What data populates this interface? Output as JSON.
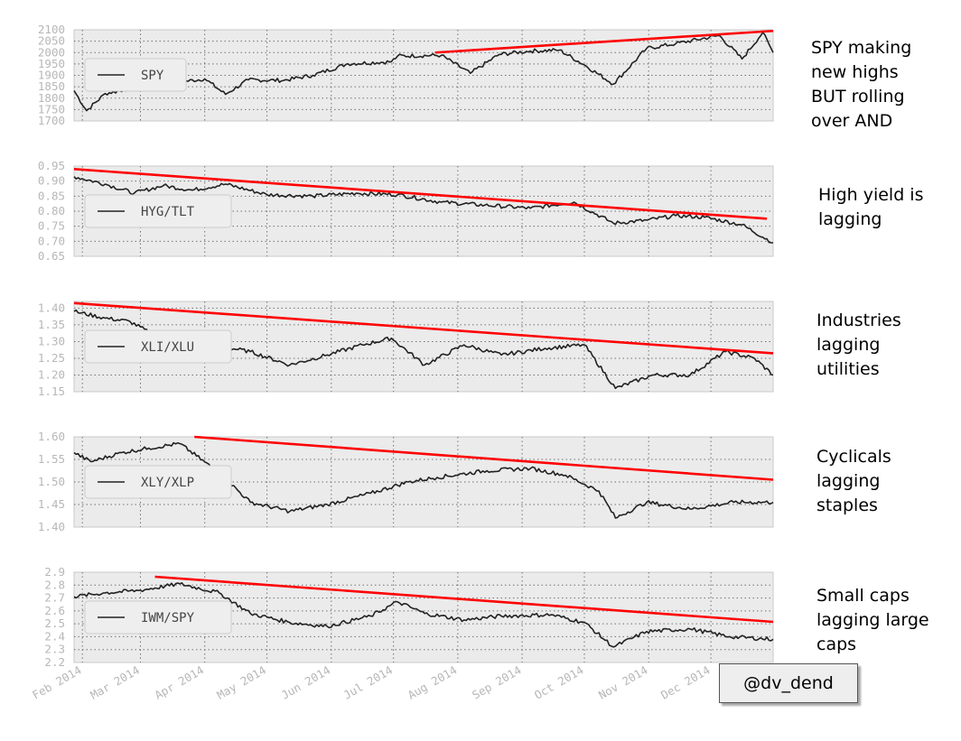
{
  "chart_data": [
    {
      "type": "line",
      "legend": "SPY",
      "yticks": [
        "1700",
        "1750",
        "1800",
        "1850",
        "1900",
        "1950",
        "2000",
        "2050",
        "2100"
      ],
      "ylim": [
        1700,
        2100
      ],
      "x_range": [
        "2014-01-28",
        "2014-12-31"
      ],
      "series": [
        {
          "name": "SPY",
          "points": [
            [
              "2014-01-28",
              1833
            ],
            [
              "2014-02-03",
              1745
            ],
            [
              "2014-02-12",
              1820
            ],
            [
              "2014-02-21",
              1836
            ],
            [
              "2014-03-07",
              1878
            ],
            [
              "2014-03-21",
              1872
            ],
            [
              "2014-04-01",
              1885
            ],
            [
              "2014-04-11",
              1817
            ],
            [
              "2014-04-22",
              1880
            ],
            [
              "2014-05-09",
              1878
            ],
            [
              "2014-05-23",
              1900
            ],
            [
              "2014-06-09",
              1951
            ],
            [
              "2014-06-30",
              1960
            ],
            [
              "2014-07-03",
              1985
            ],
            [
              "2014-07-24",
              1988
            ],
            [
              "2014-08-07",
              1909
            ],
            [
              "2014-08-21",
              1992
            ],
            [
              "2014-09-05",
              2007
            ],
            [
              "2014-09-19",
              2011
            ],
            [
              "2014-10-01",
              1946
            ],
            [
              "2014-10-15",
              1862
            ],
            [
              "2014-10-31",
              2018
            ],
            [
              "2014-11-14",
              2039
            ],
            [
              "2014-12-05",
              2075
            ],
            [
              "2014-12-16",
              1972
            ],
            [
              "2014-12-26",
              2088
            ],
            [
              "2014-12-31",
              2000
            ]
          ]
        }
      ],
      "trendline": {
        "from": [
          "2014-07-21",
          2000
        ],
        "to": [
          "2014-12-31",
          2095
        ]
      }
    },
    {
      "type": "line",
      "legend": "HYG/TLT",
      "yticks": [
        "0.65",
        "0.70",
        "0.75",
        "0.80",
        "0.85",
        "0.90",
        "0.95"
      ],
      "ylim": [
        0.65,
        0.95
      ],
      "x_range": [
        "2014-01-28",
        "2014-12-31"
      ],
      "series": [
        {
          "name": "HYG/TLT",
          "points": [
            [
              "2014-01-28",
              0.915
            ],
            [
              "2014-02-12",
              0.89
            ],
            [
              "2014-02-26",
              0.86
            ],
            [
              "2014-03-12",
              0.885
            ],
            [
              "2014-03-26",
              0.87
            ],
            [
              "2014-04-11",
              0.89
            ],
            [
              "2014-05-01",
              0.855
            ],
            [
              "2014-05-23",
              0.85
            ],
            [
              "2014-06-13",
              0.86
            ],
            [
              "2014-07-03",
              0.855
            ],
            [
              "2014-07-24",
              0.83
            ],
            [
              "2014-08-14",
              0.82
            ],
            [
              "2014-09-05",
              0.81
            ],
            [
              "2014-09-26",
              0.83
            ],
            [
              "2014-10-15",
              0.76
            ],
            [
              "2014-10-31",
              0.77
            ],
            [
              "2014-11-14",
              0.785
            ],
            [
              "2014-11-28",
              0.78
            ],
            [
              "2014-12-16",
              0.755
            ],
            [
              "2014-12-31",
              0.695
            ]
          ]
        }
      ],
      "trendline": {
        "from": [
          "2014-01-28",
          0.94
        ],
        "to": [
          "2014-12-28",
          0.775
        ]
      }
    },
    {
      "type": "line",
      "legend": "XLI/XLU",
      "yticks": [
        "1.15",
        "1.20",
        "1.25",
        "1.30",
        "1.35",
        "1.40"
      ],
      "ylim": [
        1.15,
        1.42
      ],
      "x_range": [
        "2014-01-28",
        "2014-12-31"
      ],
      "series": [
        {
          "name": "XLI/XLU",
          "points": [
            [
              "2014-01-28",
              1.39
            ],
            [
              "2014-02-12",
              1.37
            ],
            [
              "2014-02-24",
              1.36
            ],
            [
              "2014-03-10",
              1.31
            ],
            [
              "2014-03-24",
              1.33
            ],
            [
              "2014-04-04",
              1.29
            ],
            [
              "2014-04-23",
              1.27
            ],
            [
              "2014-05-12",
              1.23
            ],
            [
              "2014-05-30",
              1.26
            ],
            [
              "2014-06-16",
              1.29
            ],
            [
              "2014-06-30",
              1.31
            ],
            [
              "2014-07-16",
              1.23
            ],
            [
              "2014-08-04",
              1.29
            ],
            [
              "2014-08-22",
              1.26
            ],
            [
              "2014-09-12",
              1.28
            ],
            [
              "2014-10-01",
              1.29
            ],
            [
              "2014-10-16",
              1.16
            ],
            [
              "2014-11-03",
              1.2
            ],
            [
              "2014-11-21",
              1.2
            ],
            [
              "2014-12-08",
              1.27
            ],
            [
              "2014-12-22",
              1.25
            ],
            [
              "2014-12-31",
              1.2
            ]
          ]
        }
      ],
      "trendline": {
        "from": [
          "2014-01-28",
          1.415
        ],
        "to": [
          "2014-12-31",
          1.265
        ]
      }
    },
    {
      "type": "line",
      "legend": "XLY/XLP",
      "yticks": [
        "1.40",
        "1.45",
        "1.50",
        "1.55",
        "1.60"
      ],
      "ylim": [
        1.4,
        1.6
      ],
      "x_range": [
        "2014-01-28",
        "2014-12-31"
      ],
      "series": [
        {
          "name": "XLY/XLP",
          "points": [
            [
              "2014-01-28",
              1.565
            ],
            [
              "2014-02-05",
              1.545
            ],
            [
              "2014-02-20",
              1.565
            ],
            [
              "2014-03-05",
              1.575
            ],
            [
              "2014-03-20",
              1.585
            ],
            [
              "2014-04-08",
              1.52
            ],
            [
              "2014-04-23",
              1.455
            ],
            [
              "2014-05-12",
              1.435
            ],
            [
              "2014-05-30",
              1.45
            ],
            [
              "2014-06-20",
              1.475
            ],
            [
              "2014-07-08",
              1.5
            ],
            [
              "2014-07-22",
              1.51
            ],
            [
              "2014-08-15",
              1.525
            ],
            [
              "2014-09-05",
              1.53
            ],
            [
              "2014-09-22",
              1.515
            ],
            [
              "2014-10-08",
              1.48
            ],
            [
              "2014-10-16",
              1.42
            ],
            [
              "2014-10-31",
              1.455
            ],
            [
              "2014-11-21",
              1.44
            ],
            [
              "2014-12-12",
              1.455
            ],
            [
              "2014-12-31",
              1.455
            ]
          ]
        }
      ],
      "trendline": {
        "from": [
          "2014-03-27",
          1.6
        ],
        "to": [
          "2014-12-31",
          1.505
        ]
      }
    },
    {
      "type": "line",
      "legend": "IWM/SPY",
      "yticks": [
        "2.2",
        "2.3",
        "2.4",
        "2.5",
        "2.6",
        "2.7",
        "2.8",
        "2.9"
      ],
      "ylim": [
        2.2,
        2.9
      ],
      "x_range": [
        "2014-01-28",
        "2014-12-31"
      ],
      "series": [
        {
          "name": "IWM/SPY",
          "points": [
            [
              "2014-01-28",
              2.71
            ],
            [
              "2014-02-12",
              2.74
            ],
            [
              "2014-03-01",
              2.76
            ],
            [
              "2014-03-20",
              2.81
            ],
            [
              "2014-04-08",
              2.74
            ],
            [
              "2014-04-23",
              2.58
            ],
            [
              "2014-05-12",
              2.51
            ],
            [
              "2014-05-30",
              2.48
            ],
            [
              "2014-06-20",
              2.56
            ],
            [
              "2014-07-03",
              2.67
            ],
            [
              "2014-07-16",
              2.58
            ],
            [
              "2014-08-04",
              2.53
            ],
            [
              "2014-08-22",
              2.56
            ],
            [
              "2014-09-15",
              2.57
            ],
            [
              "2014-10-01",
              2.51
            ],
            [
              "2014-10-15",
              2.32
            ],
            [
              "2014-10-31",
              2.44
            ],
            [
              "2014-11-21",
              2.46
            ],
            [
              "2014-12-10",
              2.4
            ],
            [
              "2014-12-31",
              2.38
            ]
          ]
        }
      ],
      "trendline": {
        "from": [
          "2014-03-08",
          2.865
        ],
        "to": [
          "2014-12-31",
          2.515
        ]
      }
    }
  ],
  "x_tick_labels": [
    "Feb 2014",
    "Mar 2014",
    "Apr 2014",
    "May 2014",
    "Jun 2014",
    "Jul 2014",
    "Aug 2014",
    "Sep 2014",
    "Oct 2014",
    "Nov 2014",
    "Dec 2014"
  ],
  "annotations": [
    "SPY making\nnew highs\nBUT rolling\nover AND",
    "High yield is\nlagging",
    "Industries\nlagging\nutilities",
    "Cyclicals\nlagging\nstaples",
    "Small caps\nlagging large\ncaps"
  ],
  "handle": "@dv_dend",
  "colors": {
    "series": "#222222",
    "trend": "#ff0000",
    "panel_bg": "#ebebeb",
    "grid": "#555555"
  }
}
